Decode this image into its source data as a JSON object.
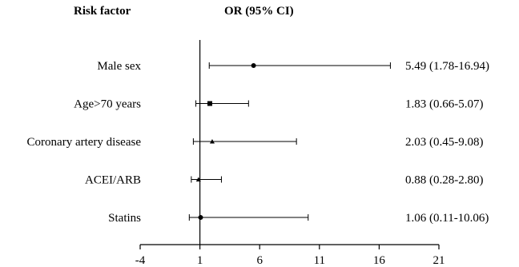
{
  "headers": {
    "risk_factor": "Risk factor",
    "or_ci": "OR (95% CI)"
  },
  "chart_data": {
    "type": "forest",
    "title": "",
    "xlabel": "",
    "ylabel": "",
    "xlim": [
      -4,
      21
    ],
    "xticks": [
      -4,
      1,
      6,
      11,
      16,
      21
    ],
    "reference_line": 1,
    "grid": false,
    "rows": [
      {
        "label": "Male sex",
        "or": 5.49,
        "lo": 1.78,
        "hi": 16.94,
        "text": "5.49 (1.78-16.94)",
        "marker": "circle"
      },
      {
        "label": "Age>70 years",
        "or": 1.83,
        "lo": 0.66,
        "hi": 5.07,
        "text": "1.83 (0.66-5.07)",
        "marker": "square"
      },
      {
        "label": "Coronary artery disease",
        "or": 2.03,
        "lo": 0.45,
        "hi": 9.08,
        "text": "2.03 (0.45-9.08)",
        "marker": "triangle"
      },
      {
        "label": "ACEI/ARB",
        "or": 0.88,
        "lo": 0.28,
        "hi": 2.8,
        "text": "0.88 (0.28-2.80)",
        "marker": "triangle"
      },
      {
        "label": "Statins",
        "or": 1.06,
        "lo": 0.11,
        "hi": 10.06,
        "text": "1.06 (0.11-10.06)",
        "marker": "circle"
      }
    ]
  }
}
